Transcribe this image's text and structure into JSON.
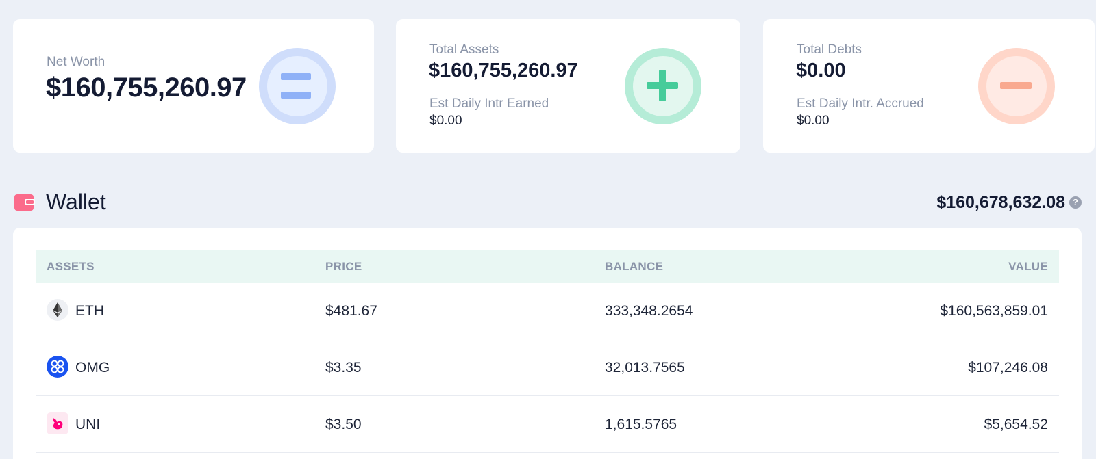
{
  "summary": {
    "net_worth": {
      "label": "Net Worth",
      "value": "$160,755,260.97",
      "icon": "equals-icon"
    },
    "total_assets": {
      "label": "Total Assets",
      "value": "$160,755,260.97",
      "sub_label": "Est Daily Intr Earned",
      "sub_value": "$0.00",
      "icon": "plus-icon"
    },
    "total_debts": {
      "label": "Total Debts",
      "value": "$0.00",
      "sub_label": "Est Daily Intr. Accrued",
      "sub_value": "$0.00",
      "icon": "minus-icon"
    }
  },
  "wallet": {
    "title": "Wallet",
    "total": "$160,678,632.08",
    "help": "?",
    "columns": {
      "asset": "ASSETS",
      "price": "PRICE",
      "balance": "BALANCE",
      "value": "VALUE"
    },
    "rows": [
      {
        "asset": "ETH",
        "icon": "ethereum-icon",
        "price": "$481.67",
        "balance": "333,348.2654",
        "value": "$160,563,859.01"
      },
      {
        "asset": "OMG",
        "icon": "omg-icon",
        "price": "$3.35",
        "balance": "32,013.7565",
        "value": "$107,246.08"
      },
      {
        "asset": "UNI",
        "icon": "uniswap-icon",
        "price": "$3.50",
        "balance": "1,615.5765",
        "value": "$5,654.52"
      }
    ]
  },
  "colors": {
    "background": "#ecf0f7",
    "net_worth_accent": "#8fb1f7",
    "assets_accent": "#46cc9a",
    "debts_accent": "#f9a98f",
    "wallet_icon": "#fb6b8b",
    "table_header_bg": "#e9f7f3"
  }
}
